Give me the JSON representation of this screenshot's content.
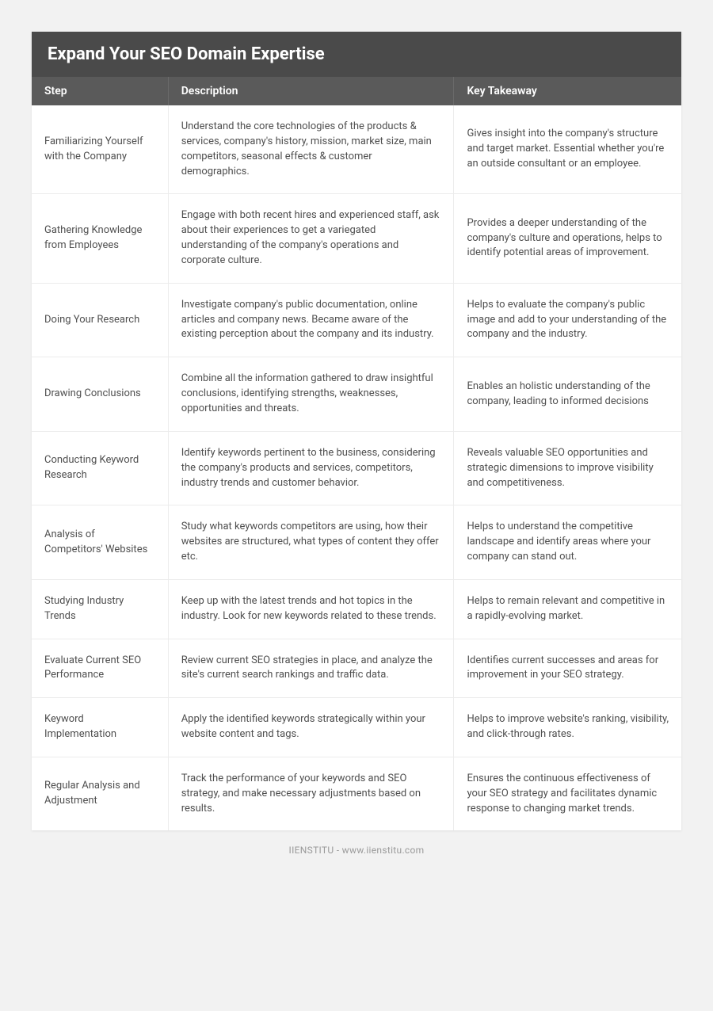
{
  "title": "Expand Your SEO Domain Expertise",
  "columns": [
    "Step",
    "Description",
    "Key Takeaway"
  ],
  "rows": [
    {
      "step": "Familiarizing Yourself with the Company",
      "desc": "Understand the core technologies of the products & services, company's history, mission, market size, main competitors, seasonal effects & customer demographics.",
      "key": "Gives insight into the company's structure and target market. Essential whether you're an outside consultant or an employee."
    },
    {
      "step": "Gathering Knowledge from Employees",
      "desc": "Engage with both recent hires and experienced staff, ask about their experiences to get a variegated understanding of the company's operations and corporate culture.",
      "key": "Provides a deeper understanding of the company's culture and operations, helps to identify potential areas of improvement."
    },
    {
      "step": "Doing Your Research",
      "desc": "Investigate company's public documentation, online articles and company news. Became aware of the existing perception about the company and its industry.",
      "key": "Helps to evaluate the company's public image and add to your understanding of the company and the industry."
    },
    {
      "step": "Drawing Conclusions",
      "desc": "Combine all the information gathered to draw insightful conclusions, identifying strengths, weaknesses, opportunities and threats.",
      "key": "Enables an holistic understanding of the company, leading to informed decisions"
    },
    {
      "step": "Conducting Keyword Research",
      "desc": "Identify keywords pertinent to the business, considering the company's products and services, competitors, industry trends and customer behavior.",
      "key": "Reveals valuable SEO opportunities and strategic dimensions to improve visibility and competitiveness."
    },
    {
      "step": "Analysis of Competitors' Websites",
      "desc": "Study what keywords competitors are using, how their websites are structured, what types of content they offer etc.",
      "key": "Helps to understand the competitive landscape and identify areas where your company can stand out."
    },
    {
      "step": "Studying Industry Trends",
      "desc": "Keep up with the latest trends and hot topics in the industry. Look for new keywords related to these trends.",
      "key": "Helps to remain relevant and competitive in a rapidly-evolving market."
    },
    {
      "step": "Evaluate Current SEO Performance",
      "desc": "Review current SEO strategies in place, and analyze the site's current search rankings and traffic data.",
      "key": "Identifies current successes and areas for improvement in your SEO strategy."
    },
    {
      "step": "Keyword Implementation",
      "desc": "Apply the identified keywords strategically within your website content and tags.",
      "key": "Helps to improve website's ranking, visibility, and click-through rates."
    },
    {
      "step": "Regular Analysis and Adjustment",
      "desc": "Track the performance of your keywords and SEO strategy, and make necessary adjustments based on results.",
      "key": "Ensures the continuous effectiveness of your SEO strategy and facilitates dynamic response to changing market trends."
    }
  ],
  "footer": "IIENSTITU - www.iienstitu.com"
}
